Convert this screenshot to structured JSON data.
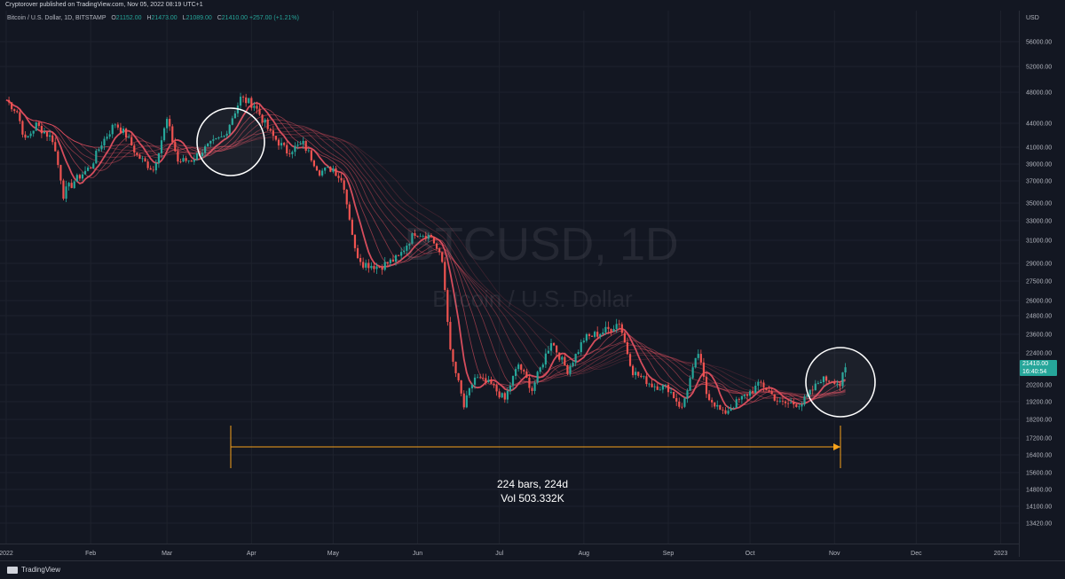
{
  "header": {
    "published_text": "Cryptorover published on TradingView.com, Nov 05, 2022 08:19 UTC+1"
  },
  "legend": {
    "symbol": "Bitcoin / U.S. Dollar, 1D, BITSTAMP",
    "o_label": "O",
    "o_value": "21152.00",
    "h_label": "H",
    "h_value": "21473.00",
    "l_label": "L",
    "l_value": "21089.00",
    "c_label": "C",
    "c_value": "21410.00",
    "change": "+257.00 (+1.21%)"
  },
  "watermark": {
    "ticker": "BTCUSD, 1D",
    "name": "Bitcoin / U.S. Dollar"
  },
  "measure": {
    "bars": "224 bars, 224d",
    "vol": "Vol 503.332K"
  },
  "price_badge": {
    "price": "21410.00",
    "countdown": "16:40:54"
  },
  "footer": {
    "brand": "TradingView"
  },
  "colors": {
    "background": "#131722",
    "up": "#26a69a",
    "down": "#ef5350",
    "ribbon": "#e05060",
    "ribbon_bull": "#4caf50",
    "measure": "#f7a21b"
  },
  "chart_data": {
    "type": "candlestick",
    "currency": "USD",
    "y_ticks": [
      "56000.00",
      "52000.00",
      "48000.00",
      "44000.00",
      "41000.00",
      "39000.00",
      "37000.00",
      "35000.00",
      "33000.00",
      "31000.00",
      "29000.00",
      "27500.00",
      "26000.00",
      "24800.00",
      "23600.00",
      "22400.00",
      "20200.00",
      "19200.00",
      "18200.00",
      "17200.00",
      "16400.00",
      "15600.00",
      "14800.00",
      "14100.00",
      "13420.00"
    ],
    "x_ticks": [
      "2022",
      "Feb",
      "Mar",
      "Apr",
      "May",
      "Jun",
      "Jul",
      "Aug",
      "Sep",
      "Oct",
      "Nov",
      "Dec",
      "2023"
    ],
    "close_path": [
      [
        "2022-01-01",
        47000
      ],
      [
        "2022-01-05",
        45500
      ],
      [
        "2022-01-08",
        41800
      ],
      [
        "2022-01-12",
        43800
      ],
      [
        "2022-01-18",
        42000
      ],
      [
        "2022-01-22",
        35800
      ],
      [
        "2022-01-26",
        37000
      ],
      [
        "2022-02-01",
        38700
      ],
      [
        "2022-02-05",
        41500
      ],
      [
        "2022-02-10",
        44000
      ],
      [
        "2022-02-14",
        42500
      ],
      [
        "2022-02-18",
        40000
      ],
      [
        "2022-02-24",
        38300
      ],
      [
        "2022-03-01",
        44400
      ],
      [
        "2022-03-05",
        39300
      ],
      [
        "2022-03-10",
        39500
      ],
      [
        "2022-03-16",
        41100
      ],
      [
        "2022-03-22",
        42400
      ],
      [
        "2022-03-28",
        47200
      ],
      [
        "2022-04-02",
        46400
      ],
      [
        "2022-04-08",
        42700
      ],
      [
        "2022-04-14",
        40500
      ],
      [
        "2022-04-20",
        41400
      ],
      [
        "2022-04-26",
        38100
      ],
      [
        "2022-05-01",
        38500
      ],
      [
        "2022-05-05",
        36600
      ],
      [
        "2022-05-09",
        30100
      ],
      [
        "2022-05-12",
        29000
      ],
      [
        "2022-05-18",
        28700
      ],
      [
        "2022-05-25",
        29500
      ],
      [
        "2022-05-31",
        31800
      ],
      [
        "2022-06-06",
        31400
      ],
      [
        "2022-06-10",
        29100
      ],
      [
        "2022-06-13",
        22400
      ],
      [
        "2022-06-18",
        18900
      ],
      [
        "2022-06-22",
        20700
      ],
      [
        "2022-06-28",
        20200
      ],
      [
        "2022-07-03",
        19300
      ],
      [
        "2022-07-08",
        21600
      ],
      [
        "2022-07-13",
        19900
      ],
      [
        "2022-07-20",
        23200
      ],
      [
        "2022-07-26",
        21200
      ],
      [
        "2022-08-01",
        23300
      ],
      [
        "2022-08-10",
        23900
      ],
      [
        "2022-08-14",
        24400
      ],
      [
        "2022-08-19",
        21100
      ],
      [
        "2022-08-26",
        20200
      ],
      [
        "2022-09-01",
        20000
      ],
      [
        "2022-09-06",
        18800
      ],
      [
        "2022-09-12",
        22400
      ],
      [
        "2022-09-15",
        19700
      ],
      [
        "2022-09-21",
        18500
      ],
      [
        "2022-09-28",
        19400
      ],
      [
        "2022-10-05",
        20300
      ],
      [
        "2022-10-12",
        19100
      ],
      [
        "2022-10-20",
        19100
      ],
      [
        "2022-10-25",
        20100
      ],
      [
        "2022-10-27",
        20600
      ],
      [
        "2022-11-01",
        20500
      ],
      [
        "2022-11-03",
        20200
      ],
      [
        "2022-11-05",
        21410
      ]
    ],
    "last_close": 21410,
    "indicator": "moving average ribbon"
  }
}
